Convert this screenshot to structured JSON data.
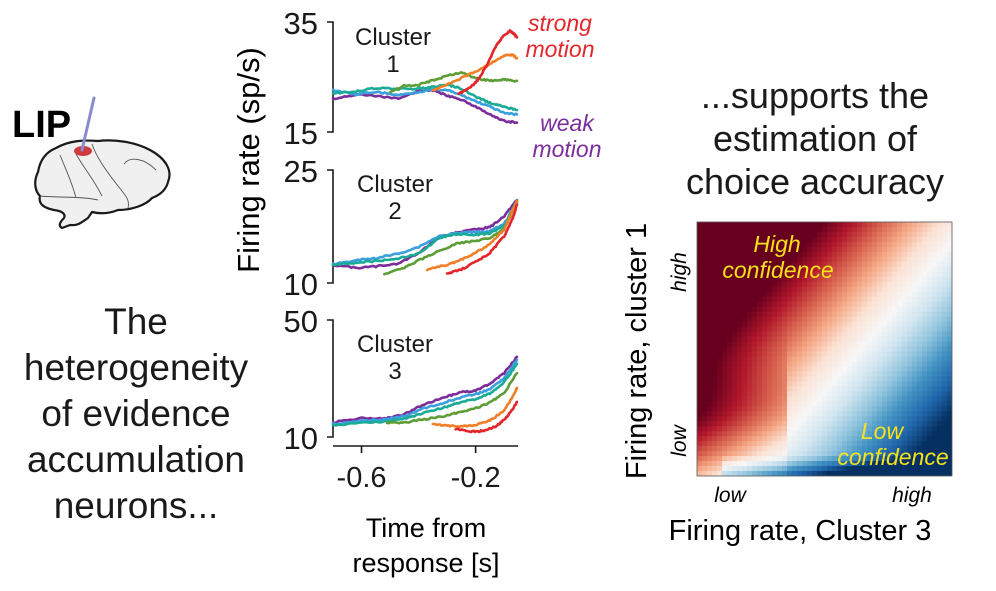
{
  "left_panel": {
    "region_label": "LIP",
    "region_color": "#d03a3f",
    "probe_color": "#8a8ccf",
    "caption_lines": [
      "The",
      "heterogeneity",
      "of evidence",
      "accumulation",
      "neurons..."
    ]
  },
  "right_panel": {
    "caption_lines": [
      "...supports the",
      "estimation of",
      "choice accuracy"
    ]
  },
  "chart_data": [
    {
      "type": "line",
      "title": "Cluster 1",
      "title_lines": [
        "Cluster",
        "1"
      ],
      "ylabel": "Firing rate (sp/s)",
      "xlabel": "Time from response [s]",
      "ylim": [
        15,
        35
      ],
      "yticks": [
        15,
        35
      ],
      "xlim": [
        -0.7,
        -0.055
      ],
      "legend": {
        "top": "strong motion",
        "top_lines": [
          "strong",
          "motion"
        ],
        "top_color": "#e3262b",
        "bottom": "weak motion",
        "bottom_lines": [
          "weak",
          "motion"
        ],
        "bottom_color": "#7b2d9a",
        "placement": "right"
      },
      "series": [
        {
          "name": "weak motion",
          "color": "#7b2d9a",
          "x": [
            -0.7,
            -0.62,
            -0.55,
            -0.47,
            -0.4,
            -0.35,
            -0.3,
            -0.25,
            -0.2,
            -0.15,
            -0.1,
            -0.055
          ],
          "y": [
            21.0,
            21.8,
            21.6,
            21.0,
            22.5,
            22.6,
            21.6,
            20.9,
            19.6,
            18.1,
            17.0,
            16.7
          ]
        },
        {
          "name": "coh-2",
          "color": "#3a9fdd",
          "x": [
            -0.7,
            -0.62,
            -0.55,
            -0.47,
            -0.4,
            -0.35,
            -0.3,
            -0.25,
            -0.2,
            -0.15,
            -0.1,
            -0.055
          ],
          "y": [
            22.6,
            21.8,
            22.3,
            21.7,
            22.3,
            22.7,
            22.6,
            21.7,
            20.6,
            19.6,
            18.4,
            18.2
          ]
        },
        {
          "name": "coh-3",
          "color": "#1aab96",
          "x": [
            -0.7,
            -0.62,
            -0.55,
            -0.47,
            -0.4,
            -0.35,
            -0.3,
            -0.25,
            -0.2,
            -0.15,
            -0.1,
            -0.055
          ],
          "y": [
            22.0,
            22.4,
            23.0,
            22.8,
            22.9,
            23.2,
            23.6,
            22.9,
            21.4,
            20.3,
            19.6,
            19.0
          ]
        },
        {
          "name": "coh-4",
          "color": "#5c9e35",
          "x": [
            -0.5,
            -0.45,
            -0.4,
            -0.35,
            -0.3,
            -0.25,
            -0.2,
            -0.15,
            -0.1,
            -0.055
          ],
          "y": [
            22.3,
            23.4,
            23.6,
            24.4,
            25.2,
            25.8,
            24.8,
            24.3,
            24.5,
            24.3
          ]
        },
        {
          "name": "coh-5",
          "color": "#f07f27",
          "x": [
            -0.35,
            -0.3,
            -0.25,
            -0.2,
            -0.15,
            -0.1,
            -0.07,
            -0.055
          ],
          "y": [
            22.5,
            23.6,
            24.8,
            26.0,
            27.4,
            28.9,
            29.0,
            28.4
          ]
        },
        {
          "name": "strong motion",
          "color": "#e3262b",
          "x": [
            -0.26,
            -0.22,
            -0.19,
            -0.16,
            -0.13,
            -0.1,
            -0.08,
            -0.065,
            -0.055
          ],
          "y": [
            21.9,
            23.0,
            24.6,
            27.2,
            30.5,
            32.6,
            33.4,
            32.8,
            32.2
          ]
        }
      ]
    },
    {
      "type": "line",
      "title": "Cluster 2",
      "title_lines": [
        "Cluster",
        "2"
      ],
      "ylim": [
        10,
        25
      ],
      "yticks": [
        10,
        25
      ],
      "xlim": [
        -0.7,
        -0.055
      ],
      "series": [
        {
          "name": "weak motion",
          "color": "#7b2d9a",
          "x": [
            -0.7,
            -0.62,
            -0.55,
            -0.47,
            -0.4,
            -0.33,
            -0.27,
            -0.2,
            -0.15,
            -0.1,
            -0.055
          ],
          "y": [
            12.4,
            12.0,
            12.2,
            12.6,
            14.0,
            16.0,
            16.7,
            17.1,
            17.4,
            18.9,
            21.0
          ]
        },
        {
          "name": "coh-2",
          "color": "#3a9fdd",
          "x": [
            -0.7,
            -0.62,
            -0.55,
            -0.47,
            -0.4,
            -0.33,
            -0.27,
            -0.2,
            -0.15,
            -0.1,
            -0.055
          ],
          "y": [
            12.5,
            13.0,
            13.3,
            13.9,
            14.8,
            16.2,
            16.6,
            16.8,
            16.9,
            17.8,
            20.8
          ]
        },
        {
          "name": "coh-3",
          "color": "#1aab96",
          "x": [
            -0.7,
            -0.62,
            -0.55,
            -0.47,
            -0.4,
            -0.33,
            -0.27,
            -0.2,
            -0.15,
            -0.1,
            -0.055
          ],
          "y": [
            12.4,
            12.7,
            12.9,
            13.3,
            13.9,
            15.9,
            16.5,
            16.4,
            16.6,
            17.5,
            21.0
          ]
        },
        {
          "name": "coh-4",
          "color": "#5c9e35",
          "x": [
            -0.52,
            -0.45,
            -0.4,
            -0.33,
            -0.27,
            -0.2,
            -0.15,
            -0.1,
            -0.055
          ],
          "y": [
            11.2,
            12.0,
            13.0,
            14.2,
            15.2,
            15.6,
            16.0,
            17.2,
            20.6
          ]
        },
        {
          "name": "coh-5",
          "color": "#f07f27",
          "x": [
            -0.37,
            -0.3,
            -0.25,
            -0.2,
            -0.15,
            -0.1,
            -0.055
          ],
          "y": [
            11.8,
            12.4,
            13.1,
            14.0,
            15.2,
            17.1,
            20.9
          ]
        },
        {
          "name": "strong motion",
          "color": "#e3262b",
          "x": [
            -0.3,
            -0.25,
            -0.2,
            -0.15,
            -0.1,
            -0.07,
            -0.055
          ],
          "y": [
            11.2,
            11.8,
            12.8,
            14.0,
            16.2,
            18.6,
            20.4
          ]
        }
      ]
    },
    {
      "type": "line",
      "title": "Cluster 3",
      "title_lines": [
        "Cluster",
        "3"
      ],
      "ylim": [
        10,
        50
      ],
      "yticks": [
        10,
        50
      ],
      "xlim": [
        -0.7,
        -0.055
      ],
      "xticks": [
        -0.6,
        -0.2
      ],
      "xticklabels": [
        "-0.6",
        "-0.2"
      ],
      "xlabel": "Time from response [s]",
      "xlabel_lines": [
        "Time from",
        "response [s]"
      ],
      "series": [
        {
          "name": "weak motion",
          "color": "#7b2d9a",
          "x": [
            -0.7,
            -0.6,
            -0.52,
            -0.45,
            -0.38,
            -0.3,
            -0.25,
            -0.2,
            -0.15,
            -0.1,
            -0.055
          ],
          "y": [
            15.0,
            16.4,
            16.2,
            17.8,
            21.2,
            23.8,
            25.4,
            25.8,
            28.2,
            31.8,
            37.4
          ]
        },
        {
          "name": "coh-2",
          "color": "#3a9fdd",
          "x": [
            -0.7,
            -0.6,
            -0.52,
            -0.45,
            -0.38,
            -0.3,
            -0.25,
            -0.2,
            -0.15,
            -0.1,
            -0.055
          ],
          "y": [
            14.4,
            15.6,
            15.9,
            17.2,
            19.8,
            22.1,
            23.6,
            24.6,
            26.4,
            30.0,
            36.4
          ]
        },
        {
          "name": "coh-3",
          "color": "#1aab96",
          "x": [
            -0.7,
            -0.6,
            -0.52,
            -0.45,
            -0.38,
            -0.3,
            -0.25,
            -0.2,
            -0.15,
            -0.1,
            -0.055
          ],
          "y": [
            14.0,
            14.8,
            15.2,
            16.2,
            18.3,
            20.4,
            21.9,
            23.0,
            24.9,
            28.7,
            35.0
          ]
        },
        {
          "name": "coh-4",
          "color": "#5c9e35",
          "x": [
            -0.51,
            -0.45,
            -0.38,
            -0.3,
            -0.25,
            -0.2,
            -0.15,
            -0.1,
            -0.055
          ],
          "y": [
            14.8,
            15.0,
            16.0,
            17.4,
            18.6,
            19.8,
            21.8,
            25.0,
            31.8
          ]
        },
        {
          "name": "coh-5",
          "color": "#f07f27",
          "x": [
            -0.35,
            -0.3,
            -0.25,
            -0.2,
            -0.15,
            -0.1,
            -0.07,
            -0.055
          ],
          "y": [
            14.6,
            13.8,
            13.6,
            14.0,
            15.6,
            19.0,
            23.8,
            26.8
          ]
        },
        {
          "name": "strong motion",
          "color": "#e3262b",
          "x": [
            -0.27,
            -0.23,
            -0.2,
            -0.17,
            -0.13,
            -0.1,
            -0.075,
            -0.055
          ],
          "y": [
            12.9,
            12.0,
            11.8,
            12.2,
            13.6,
            15.8,
            18.8,
            22.0
          ]
        }
      ]
    },
    {
      "type": "heatmap",
      "title": "choice accuracy",
      "xlabel": "Firing rate, Cluster 3",
      "ylabel": "Firing rate, cluster 1",
      "xticklabels": [
        "low",
        "high"
      ],
      "yticklabels": [
        "low",
        "high"
      ],
      "colormap": [
        "#67001f",
        "#b2182b",
        "#d6604d",
        "#f4a582",
        "#fbe1d3",
        "#f7f7f7",
        "#d1e5f0",
        "#92c5de",
        "#4393c3",
        "#2166ac",
        "#053061"
      ],
      "annotations": [
        {
          "text": "High confidence",
          "lines": [
            "High",
            "confidence"
          ],
          "color": "#f5e21b",
          "region": "top-left"
        },
        {
          "text": "Low confidence",
          "lines": [
            "Low",
            "confidence"
          ],
          "color": "#f5e21b",
          "region": "bottom-right"
        }
      ],
      "description": "Value is high (red) when cluster 1 rate exceeds cluster 3 rate (upper-left), low (blue) when cluster 3 rate exceeds cluster 1 (lower-right); white boundary along a roughly diagonal band."
    }
  ]
}
